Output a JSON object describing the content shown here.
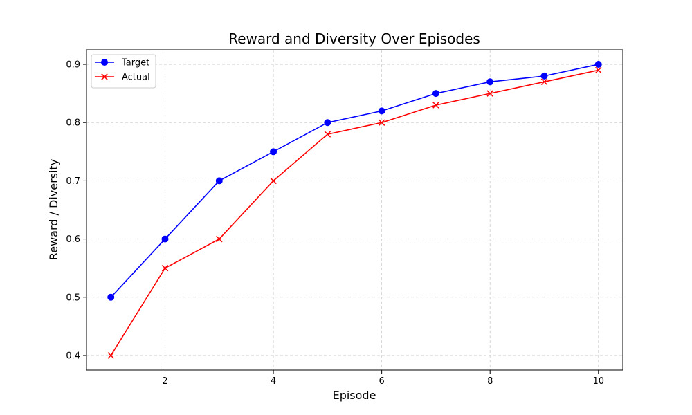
{
  "chart_data": {
    "type": "line",
    "title": "Reward and Diversity Over Episodes",
    "xlabel": "Episode",
    "ylabel": "Reward / Diversity",
    "x": [
      1,
      2,
      3,
      4,
      5,
      6,
      7,
      8,
      9,
      10
    ],
    "xlim": [
      0.55,
      10.45
    ],
    "ylim": [
      0.375,
      0.925
    ],
    "x_ticks": [
      2,
      4,
      6,
      8,
      10
    ],
    "y_ticks": [
      0.4,
      0.5,
      0.6,
      0.7,
      0.8,
      0.9
    ],
    "x_tick_labels": [
      "2",
      "4",
      "6",
      "8",
      "10"
    ],
    "y_tick_labels": [
      "0.4",
      "0.5",
      "0.6",
      "0.7",
      "0.8",
      "0.9"
    ],
    "grid": true,
    "grid_style": "dashed",
    "legend_position": "top-left",
    "series": [
      {
        "name": "Target",
        "color": "#0000ff",
        "marker": "circle",
        "values": [
          0.5,
          0.6,
          0.7,
          0.75,
          0.8,
          0.82,
          0.85,
          0.87,
          0.88,
          0.9
        ]
      },
      {
        "name": "Actual",
        "color": "#ff0000",
        "marker": "x",
        "values": [
          0.4,
          0.55,
          0.6,
          0.7,
          0.78,
          0.8,
          0.83,
          0.85,
          0.87,
          0.89
        ]
      }
    ]
  }
}
